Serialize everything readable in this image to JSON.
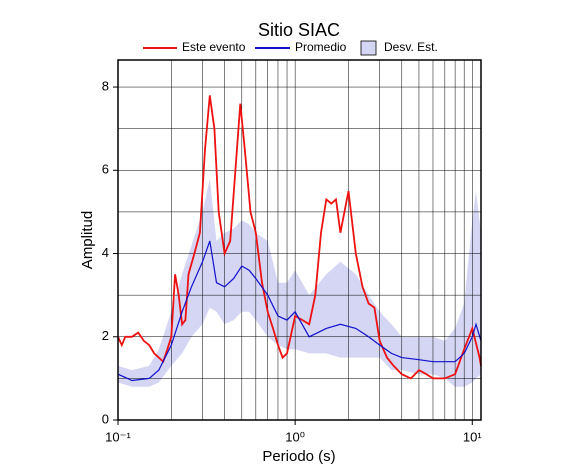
{
  "chart_data": {
    "type": "line",
    "title": "Sitio SIAC",
    "xlabel": "Periodo (s)",
    "ylabel": "Amplitud",
    "xscale": "log",
    "grid": true,
    "xlim": [
      0.1,
      11.2
    ],
    "ylim": [
      0,
      8.65
    ],
    "xticks": [
      {
        "value": 0.1,
        "label": "10⁻¹"
      },
      {
        "value": 1,
        "label": "10⁰"
      },
      {
        "value": 10,
        "label": "10¹"
      }
    ],
    "xminor": [
      0.2,
      0.3,
      0.4,
      0.5,
      0.6,
      0.7,
      0.8,
      0.9,
      2,
      3,
      4,
      5,
      6,
      7,
      8,
      9
    ],
    "yticks": [
      0,
      2,
      4,
      6,
      8
    ],
    "yminor": [
      1,
      3,
      5,
      7
    ],
    "band": {
      "name": "Desv. Est.",
      "color": "#d4d6f4",
      "x": [
        0.1,
        0.12,
        0.15,
        0.17,
        0.2,
        0.23,
        0.26,
        0.3,
        0.33,
        0.36,
        0.4,
        0.45,
        0.5,
        0.55,
        0.6,
        0.7,
        0.8,
        0.9,
        1.0,
        1.2,
        1.5,
        1.8,
        2.2,
        2.6,
        3.0,
        3.5,
        4.0,
        5.0,
        6.0,
        7.0,
        8.0,
        9.0,
        10,
        10.5,
        11.2
      ],
      "lower": [
        0.9,
        0.8,
        0.8,
        0.9,
        1.3,
        1.6,
        2.0,
        2.3,
        2.7,
        2.6,
        2.3,
        2.4,
        2.6,
        2.6,
        2.4,
        2.0,
        1.8,
        1.7,
        1.7,
        1.6,
        1.6,
        1.5,
        1.5,
        1.5,
        1.5,
        1.2,
        1.2,
        1.1,
        1.1,
        1.0,
        0.8,
        0.8,
        0.9,
        1.0,
        1.1
      ],
      "upper": [
        1.3,
        1.2,
        1.3,
        1.7,
        2.6,
        3.5,
        4.2,
        5.0,
        5.8,
        4.3,
        4.5,
        4.6,
        4.8,
        4.7,
        4.5,
        4.3,
        3.3,
        3.3,
        3.6,
        3.0,
        3.5,
        3.8,
        3.5,
        3.0,
        2.6,
        2.3,
        2.0,
        2.0,
        2.0,
        1.9,
        2.2,
        2.8,
        4.8,
        5.5,
        4.5
      ]
    },
    "series": [
      {
        "name": "Este evento",
        "color": "#ee1111",
        "x": [
          0.1,
          0.105,
          0.11,
          0.12,
          0.13,
          0.14,
          0.15,
          0.16,
          0.17,
          0.18,
          0.19,
          0.2,
          0.21,
          0.22,
          0.23,
          0.24,
          0.25,
          0.27,
          0.29,
          0.31,
          0.33,
          0.35,
          0.37,
          0.4,
          0.43,
          0.46,
          0.49,
          0.52,
          0.56,
          0.6,
          0.65,
          0.7,
          0.75,
          0.8,
          0.85,
          0.9,
          1.0,
          1.1,
          1.2,
          1.3,
          1.4,
          1.5,
          1.6,
          1.7,
          1.8,
          2.0,
          2.2,
          2.4,
          2.6,
          2.8,
          3.0,
          3.3,
          3.6,
          4.0,
          4.5,
          5.0,
          5.5,
          6.0,
          7.0,
          8.0,
          9.0,
          10,
          11,
          11.2
        ],
        "values": [
          2.0,
          1.8,
          2.0,
          2.0,
          2.1,
          1.9,
          1.8,
          1.6,
          1.5,
          1.4,
          1.7,
          2.0,
          3.5,
          3.0,
          2.3,
          2.4,
          3.5,
          4.0,
          4.5,
          6.5,
          7.8,
          7.0,
          5.0,
          4.0,
          4.3,
          6.0,
          7.6,
          6.5,
          5.0,
          4.5,
          3.3,
          2.6,
          2.2,
          1.8,
          1.5,
          1.6,
          2.5,
          2.4,
          2.3,
          3.0,
          4.5,
          5.3,
          5.2,
          5.3,
          4.5,
          5.5,
          4.0,
          3.2,
          2.8,
          2.7,
          1.9,
          1.5,
          1.3,
          1.1,
          1.0,
          1.2,
          1.1,
          1.0,
          1.0,
          1.1,
          1.7,
          2.2,
          1.5,
          1.3
        ]
      },
      {
        "name": "Promedio",
        "color": "#1111cc",
        "x": [
          0.1,
          0.12,
          0.15,
          0.17,
          0.2,
          0.23,
          0.26,
          0.3,
          0.33,
          0.36,
          0.4,
          0.45,
          0.5,
          0.55,
          0.6,
          0.7,
          0.8,
          0.9,
          1.0,
          1.2,
          1.5,
          1.8,
          2.2,
          2.6,
          3.0,
          3.5,
          4.0,
          5.0,
          6.0,
          7.0,
          8.0,
          9.0,
          10,
          10.5,
          11.2
        ],
        "values": [
          1.1,
          0.95,
          1.0,
          1.2,
          1.8,
          2.6,
          3.2,
          3.8,
          4.3,
          3.3,
          3.2,
          3.4,
          3.7,
          3.6,
          3.4,
          3.0,
          2.5,
          2.4,
          2.6,
          2.0,
          2.2,
          2.3,
          2.2,
          2.0,
          1.8,
          1.6,
          1.5,
          1.45,
          1.4,
          1.4,
          1.4,
          1.6,
          2.0,
          2.3,
          1.9
        ]
      }
    ]
  }
}
